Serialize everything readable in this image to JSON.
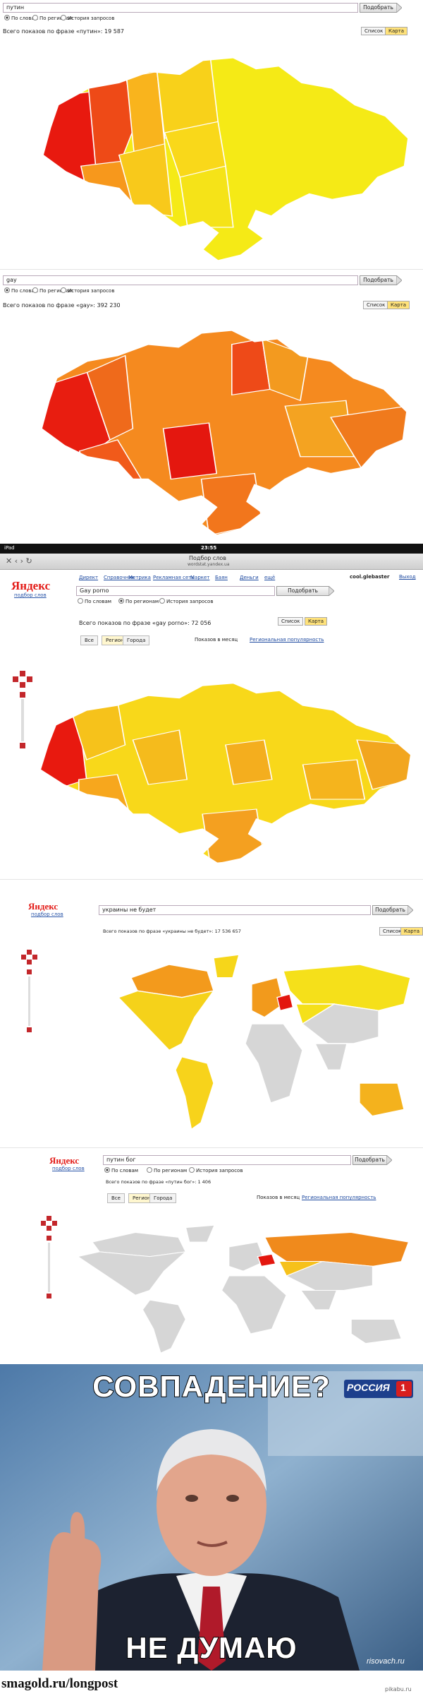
{
  "panels": [
    {
      "query": "путин",
      "button": "Подобрать",
      "options": [
        "По словам",
        "По регионам",
        "История запросов"
      ],
      "total": "Всего показов по фразе «путин»: 19 587",
      "views": [
        "Список",
        "Карта"
      ]
    },
    {
      "query": "gay",
      "button": "Подобрать",
      "options": [
        "По словам",
        "По регионам",
        "История запросов"
      ],
      "total": "Всего показов по фразе «gay»: 392 230",
      "views": [
        "Список",
        "Карта"
      ]
    },
    {
      "device": "iPad",
      "time": "23:55",
      "page_title": "Подбор слов",
      "url": "wordstat.yandex.ua",
      "logo": "Яндекс",
      "logo_sub": "подбор слов",
      "nav": [
        "Директ",
        "Справочник",
        "Метрика",
        "Рекламная сеть",
        "Маркет",
        "Баян",
        "Деньги",
        "ещё"
      ],
      "user": "cool.glebaster",
      "logout": "Выход",
      "query": "Gay porno",
      "button": "Подобрать",
      "options": [
        "По словам",
        "По регионам",
        "История запросов"
      ],
      "total": "Всего показов по фразе «gay porno»: 72 056",
      "views": [
        "Список",
        "Карта"
      ],
      "tabs": [
        "Все",
        "Регионы",
        "Города"
      ],
      "period": "Показов в месяц",
      "popularity": "Региональная популярность"
    },
    {
      "logo": "Яндекс",
      "logo_sub": "подбор слов",
      "query": "украины не будет",
      "button": "Подобрать",
      "total": "Всего показов по фразе «украины не будет»: 17 536 657",
      "views": [
        "Список",
        "Карта"
      ]
    },
    {
      "logo": "Яндекс",
      "logo_sub": "подбор слов",
      "query": "путин бог",
      "button": "Подобрать",
      "options": [
        "По словам",
        "По регионам",
        "История запросов"
      ],
      "total": "Всего показов по фразе «путин бог»: 1 406",
      "tabs": [
        "Все",
        "Регионы",
        "Города"
      ],
      "period": "Показов в месяц",
      "popularity": "Региональная популярность"
    }
  ],
  "meme": {
    "top": "СОВПАДЕНИЕ?",
    "bottom": "НЕ ДУМАЮ",
    "channel": "РОССИЯ",
    "channel_num": "1",
    "watermark": "risovach.ru"
  },
  "footer": {
    "left": "smagold.ru/longpost",
    "right": "pikabu.ru"
  }
}
